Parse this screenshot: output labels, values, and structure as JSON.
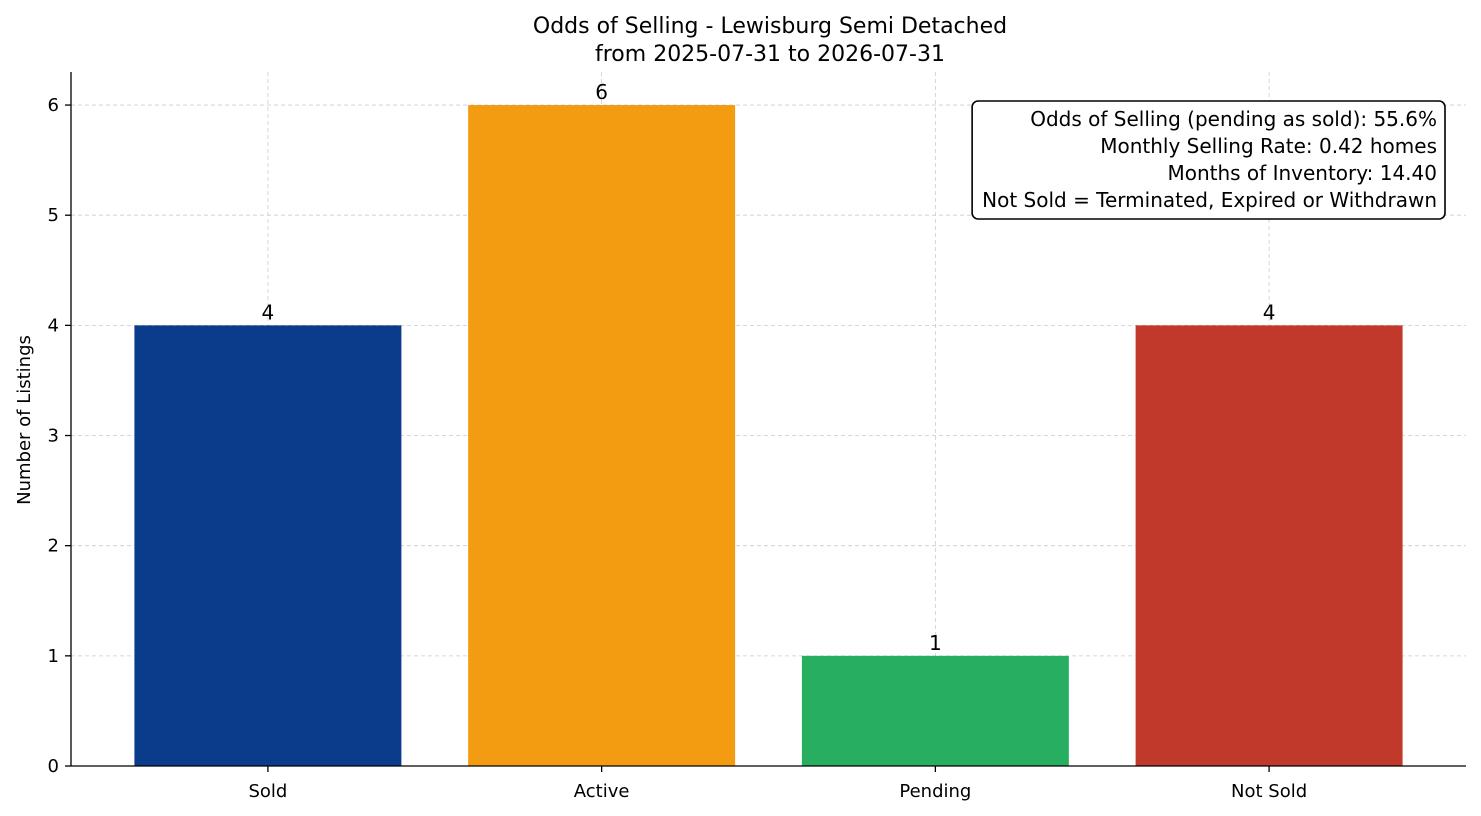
{
  "chart_data": {
    "type": "bar",
    "title": "Odds of Selling - Lewisburg Semi Detached",
    "subtitle": "from 2025-07-31 to 2026-07-31",
    "xlabel": "",
    "ylabel": "Number of Listings",
    "categories": [
      "Sold",
      "Active",
      "Pending",
      "Not Sold"
    ],
    "values": [
      4,
      6,
      1,
      4
    ],
    "data_labels": [
      "4",
      "6",
      "1",
      "4"
    ],
    "colors": [
      "#0b3c8c",
      "#f39c12",
      "#27ae60",
      "#c0392b"
    ],
    "ylim": [
      0,
      6.3
    ],
    "yticks": [
      0,
      1,
      2,
      3,
      4,
      5,
      6
    ],
    "ytick_labels": [
      "0",
      "1",
      "2",
      "3",
      "4",
      "5",
      "6"
    ],
    "grid": true,
    "legend": "none",
    "annotation": {
      "placement": "top-right",
      "lines": [
        "Odds of Selling (pending as sold): 55.6%",
        "Monthly Selling Rate: 0.42 homes",
        "Months of Inventory: 14.40",
        "Not Sold = Terminated, Expired or Withdrawn"
      ]
    }
  }
}
